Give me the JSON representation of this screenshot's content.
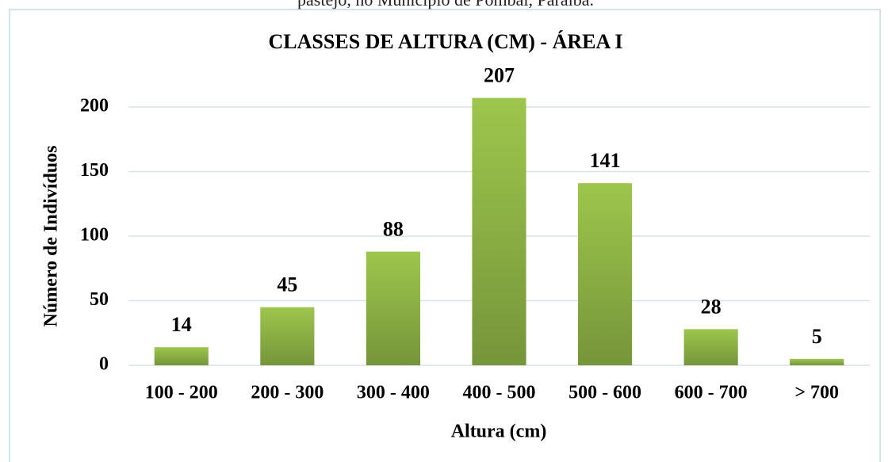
{
  "caption": "pastejo, no Município de Pombal, Paraíba.",
  "chart_data": {
    "type": "bar",
    "title": "CLASSES DE ALTURA (CM) - ÁREA I",
    "x_label": "Altura (cm)",
    "y_label": "Número de Indivíduos",
    "categories": [
      "100 - 200",
      "200 - 300",
      "300 - 400",
      "400 - 500",
      "500 - 600",
      "600 - 700",
      "> 700"
    ],
    "values": [
      14,
      45,
      88,
      207,
      141,
      28,
      5
    ],
    "color": "#8fb444",
    "ylim": [
      0,
      200
    ],
    "yticks": [
      0,
      50,
      100,
      150,
      200
    ],
    "grid": true
  }
}
